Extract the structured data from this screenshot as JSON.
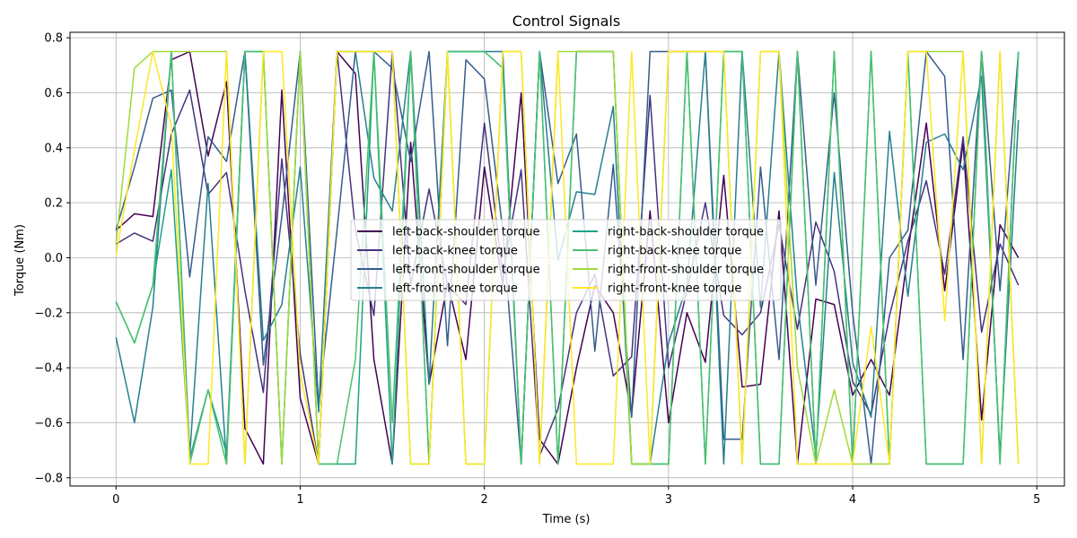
{
  "chart_data": {
    "type": "line",
    "title": "Control Signals",
    "xlabel": "Time (s)",
    "ylabel": "Torque (Nm)",
    "xlim": [
      -0.25,
      5.15
    ],
    "ylim": [
      -0.83,
      0.82
    ],
    "xticks": [
      0,
      1,
      2,
      3,
      4,
      5
    ],
    "yticks": [
      -0.8,
      -0.6,
      -0.4,
      -0.2,
      0.0,
      0.2,
      0.4,
      0.6,
      0.8
    ],
    "xtick_labels": [
      "0",
      "1",
      "2",
      "3",
      "4",
      "5"
    ],
    "ytick_labels": [
      "−0.8",
      "−0.6",
      "−0.4",
      "−0.2",
      "0.0",
      "0.2",
      "0.4",
      "0.6",
      "0.8"
    ],
    "grid": true,
    "legend_placement": "center",
    "legend_columns": 2,
    "x": [
      0,
      0.1,
      0.2,
      0.3,
      0.4,
      0.5,
      0.6,
      0.7,
      0.8,
      0.9,
      1.0,
      1.1,
      1.2,
      1.3,
      1.4,
      1.5,
      1.6,
      1.7,
      1.8,
      1.9,
      2.0,
      2.1,
      2.2,
      2.3,
      2.4,
      2.5,
      2.6,
      2.7,
      2.8,
      2.9,
      3.0,
      3.1,
      3.2,
      3.3,
      3.4,
      3.5,
      3.6,
      3.7,
      3.8,
      3.9,
      4.0,
      4.1,
      4.2,
      4.3,
      4.4,
      4.5,
      4.6,
      4.7,
      4.8,
      4.9
    ],
    "series": [
      {
        "name": "left-back-shoulder torque",
        "color": "#440154",
        "values": [
          0.1,
          0.16,
          0.15,
          0.72,
          0.75,
          0.37,
          0.64,
          -0.62,
          -0.75,
          0.61,
          -0.51,
          -0.75,
          0.75,
          0.67,
          -0.37,
          -0.75,
          0.42,
          -0.46,
          -0.09,
          -0.37,
          0.33,
          -0.1,
          0.6,
          -0.66,
          -0.75,
          -0.4,
          -0.1,
          -0.2,
          -0.57,
          0.17,
          -0.6,
          -0.2,
          -0.38,
          0.3,
          -0.47,
          -0.46,
          0.17,
          -0.75,
          -0.15,
          -0.17,
          -0.5,
          -0.37,
          -0.5,
          0.02,
          0.49,
          -0.12,
          0.42,
          -0.59,
          0.12,
          0.0
        ]
      },
      {
        "name": "left-back-knee torque",
        "color": "#46327e",
        "values": [
          0.05,
          0.09,
          0.06,
          0.45,
          0.61,
          0.23,
          0.31,
          -0.12,
          -0.49,
          0.36,
          -0.35,
          -0.75,
          0.75,
          0.1,
          -0.21,
          0.75,
          -0.1,
          0.25,
          -0.1,
          -0.17,
          0.49,
          -0.06,
          0.32,
          -0.72,
          -0.55,
          -0.2,
          -0.06,
          -0.43,
          -0.36,
          0.59,
          -0.4,
          -0.12,
          0.2,
          -0.21,
          -0.28,
          -0.2,
          0.12,
          -0.26,
          0.13,
          -0.05,
          -0.45,
          -0.57,
          -0.21,
          0.06,
          0.28,
          -0.06,
          0.44,
          -0.27,
          0.05,
          -0.1
        ]
      },
      {
        "name": "left-front-shoulder torque",
        "color": "#365c8d",
        "values": [
          0.1,
          0.33,
          0.58,
          0.61,
          -0.07,
          0.44,
          0.35,
          0.75,
          -0.39,
          0.15,
          0.75,
          -0.54,
          0.1,
          0.75,
          0.75,
          0.69,
          0.35,
          0.75,
          -0.32,
          0.72,
          0.65,
          0.1,
          -0.75,
          0.75,
          0.27,
          0.45,
          -0.34,
          0.34,
          -0.58,
          0.75,
          0.75,
          0.75,
          0.75,
          -0.66,
          -0.66,
          0.33,
          -0.37,
          0.75,
          -0.1,
          0.6,
          -0.2,
          -0.75,
          0.0,
          0.1,
          0.75,
          0.66,
          -0.37,
          0.75,
          -0.12,
          0.75
        ]
      },
      {
        "name": "left-front-knee torque",
        "color": "#277f8e",
        "values": [
          -0.29,
          -0.6,
          -0.18,
          0.75,
          -0.72,
          0.27,
          -0.75,
          0.75,
          -0.3,
          -0.17,
          0.33,
          -0.56,
          0.75,
          0.75,
          0.29,
          0.17,
          0.75,
          -0.46,
          0.75,
          0.75,
          0.75,
          0.75,
          -0.75,
          0.75,
          -0.01,
          0.24,
          0.23,
          0.55,
          -0.75,
          -0.75,
          -0.31,
          -0.1,
          0.75,
          -0.75,
          0.75,
          -0.18,
          0.75,
          -0.16,
          -0.72,
          0.31,
          -0.38,
          -0.58,
          0.46,
          -0.14,
          0.42,
          0.45,
          0.32,
          0.66,
          -0.72,
          0.5
        ]
      },
      {
        "name": "right-back-shoulder torque",
        "color": "#1fa187",
        "values": [
          -0.16,
          -0.31,
          -0.1,
          0.32,
          -0.73,
          -0.48,
          -0.71,
          0.75,
          0.75,
          -0.75,
          0.75,
          -0.75,
          -0.75,
          -0.75,
          0.75,
          -0.75,
          0.75,
          -0.75,
          0.75,
          0.75,
          0.75,
          0.69,
          -0.75,
          0.75,
          -0.75,
          0.75,
          0.75,
          0.75,
          -0.75,
          -0.75,
          -0.75,
          0.75,
          -0.75,
          0.75,
          0.75,
          -0.75,
          -0.75,
          0.75,
          -0.75,
          0.75,
          -0.75,
          0.75,
          -0.75,
          0.75,
          -0.75,
          -0.75,
          -0.75,
          0.75,
          -0.75,
          0.75
        ]
      },
      {
        "name": "right-back-knee torque",
        "color": "#4ac16d",
        "values": [
          -0.16,
          -0.31,
          -0.1,
          0.75,
          -0.75,
          -0.48,
          -0.75,
          0.75,
          0.75,
          -0.75,
          0.75,
          -0.75,
          -0.75,
          -0.37,
          0.75,
          -0.6,
          0.75,
          -0.75,
          0.75,
          0.75,
          0.75,
          0.69,
          -0.75,
          0.75,
          -0.75,
          0.75,
          0.75,
          0.75,
          -0.75,
          -0.75,
          -0.75,
          0.75,
          -0.75,
          0.75,
          0.75,
          -0.75,
          -0.75,
          0.75,
          -0.75,
          0.75,
          -0.75,
          0.75,
          -0.75,
          0.75,
          -0.75,
          -0.75,
          -0.75,
          0.75,
          -0.75,
          0.75
        ]
      },
      {
        "name": "right-front-shoulder torque",
        "color": "#a0da39",
        "values": [
          0.05,
          0.69,
          0.75,
          0.75,
          0.75,
          0.75,
          0.75,
          -0.75,
          0.75,
          -0.75,
          0.75,
          -0.75,
          0.75,
          0.75,
          0.75,
          0.75,
          -0.75,
          -0.75,
          0.75,
          -0.75,
          -0.75,
          0.75,
          0.75,
          -0.75,
          0.75,
          0.75,
          0.75,
          0.75,
          -0.75,
          -0.75,
          0.75,
          0.75,
          0.75,
          0.75,
          -0.75,
          0.75,
          0.75,
          -0.4,
          -0.75,
          -0.48,
          -0.75,
          -0.75,
          -0.75,
          0.75,
          0.75,
          0.75,
          0.75,
          -0.75,
          0.75,
          -0.75
        ]
      },
      {
        "name": "right-front-knee torque",
        "color": "#fde725",
        "values": [
          0.01,
          0.39,
          0.75,
          0.48,
          -0.75,
          -0.75,
          0.75,
          -0.75,
          0.75,
          0.75,
          -0.42,
          -0.75,
          0.75,
          0.75,
          0.75,
          0.75,
          -0.75,
          -0.75,
          0.75,
          -0.75,
          -0.75,
          0.75,
          0.75,
          -0.75,
          0.75,
          -0.75,
          -0.75,
          -0.75,
          0.75,
          -0.75,
          0.75,
          0.75,
          0.75,
          0.75,
          -0.75,
          0.75,
          0.75,
          -0.75,
          -0.75,
          -0.75,
          -0.75,
          -0.25,
          -0.75,
          0.75,
          0.75,
          -0.23,
          0.75,
          -0.75,
          0.75,
          -0.75
        ]
      }
    ]
  }
}
